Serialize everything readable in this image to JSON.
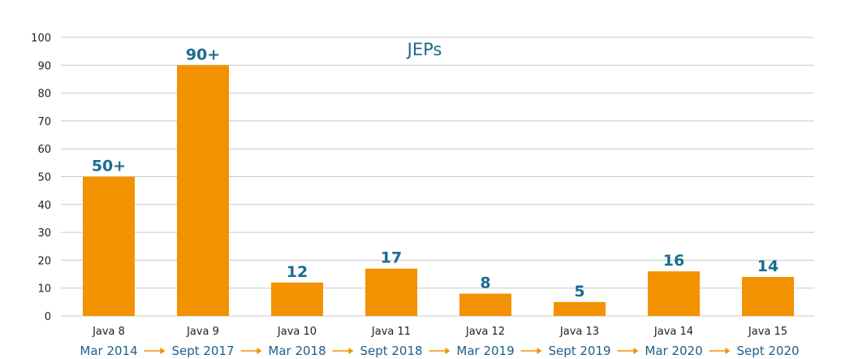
{
  "chart_data": {
    "type": "bar",
    "title": "JEPs",
    "xlabel": "",
    "ylabel": "",
    "ylim": [
      0,
      100
    ],
    "yticks": [
      0,
      10,
      20,
      30,
      40,
      50,
      60,
      70,
      80,
      90,
      100
    ],
    "grid": true,
    "categories": [
      "Java 8",
      "Java 9",
      "Java 10",
      "Java 11",
      "Java 12",
      "Java 13",
      "Java 14",
      "Java 15"
    ],
    "values": [
      50,
      90,
      12,
      17,
      8,
      5,
      16,
      14
    ],
    "data_labels": [
      "50+",
      "90+",
      "12",
      "17",
      "8",
      "5",
      "16",
      "14"
    ],
    "release_dates": [
      "Mar 2014",
      "Sept 2017",
      "Mar 2018",
      "Sept 2018",
      "Mar 2019",
      "Sept 2019",
      "Mar 2020",
      "Sept 2020"
    ]
  },
  "colors": {
    "bar": "#f39200",
    "label": "#1a6d8e",
    "grid": "#c8c8c8",
    "arrow": "#f39200"
  }
}
